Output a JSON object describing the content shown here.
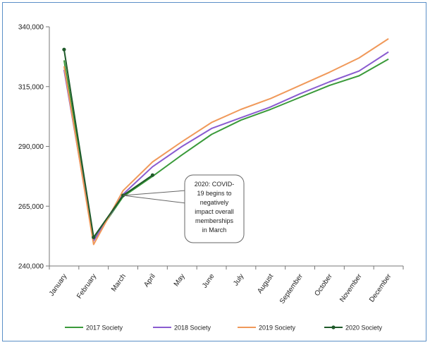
{
  "chart_data": {
    "type": "line",
    "categories": [
      "January",
      "February",
      "March",
      "April",
      "May",
      "June",
      "July",
      "August",
      "September",
      "October",
      "November",
      "December"
    ],
    "ylim": [
      240000,
      340000
    ],
    "yticks": [
      240000,
      265000,
      290000,
      315000,
      340000
    ],
    "ytick_labels": [
      "240,000",
      "265,000",
      "290,000",
      "315,000",
      "340,000"
    ],
    "grid": false,
    "legend_position": "bottom",
    "series": [
      {
        "name": "2017 Society",
        "color": "#3a9a3a",
        "marker": "none",
        "values": [
          326000,
          251000,
          269000,
          277500,
          286500,
          295000,
          301000,
          305500,
          310500,
          315500,
          319500,
          326500
        ]
      },
      {
        "name": "2018 Society",
        "color": "#8a5cd0",
        "marker": "none",
        "values": [
          322000,
          250500,
          270000,
          281500,
          290000,
          297500,
          302000,
          306500,
          312000,
          317000,
          321500,
          329500
        ]
      },
      {
        "name": "2019 Society",
        "color": "#f0995a",
        "marker": "none",
        "values": [
          323500,
          249000,
          271500,
          283500,
          292000,
          300000,
          305500,
          310000,
          315500,
          321000,
          327000,
          335000
        ]
      },
      {
        "name": "2020 Society",
        "color": "#1f5a2a",
        "marker": "circle",
        "values": [
          330500,
          252000,
          269500,
          278000,
          null,
          null,
          null,
          null,
          null,
          null,
          null,
          null
        ]
      }
    ],
    "annotations": [
      {
        "lines": [
          "2020: COVID-",
          "19 begins to",
          "negatively",
          "impact overall",
          "memberships",
          "in March"
        ],
        "target_category": "March",
        "target_value": 269500
      }
    ]
  }
}
